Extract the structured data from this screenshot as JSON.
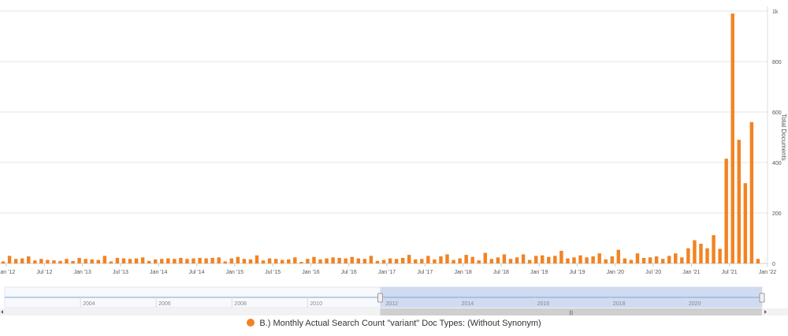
{
  "colors": {
    "series": "#f28322",
    "grid": "#e6e6e6",
    "axis_text": "#555555",
    "navigator_selection": "#c9d6ee",
    "navigator_line": "#7ea5d6"
  },
  "chart_data": {
    "type": "bar",
    "title": "",
    "xlabel": "",
    "ylabel": "Total Documents",
    "y_axis_position": "right",
    "ylim": [
      0,
      1000
    ],
    "y_ticks": [
      {
        "value": 0,
        "label": "0"
      },
      {
        "value": 200,
        "label": "200"
      },
      {
        "value": 400,
        "label": "400"
      },
      {
        "value": 600,
        "label": "600"
      },
      {
        "value": 800,
        "label": "800"
      },
      {
        "value": 1000,
        "label": "1k"
      }
    ],
    "x_range": [
      "2011-12",
      "2022-01"
    ],
    "x_ticks": [
      {
        "date": "2012-01",
        "label": "Jan '12"
      },
      {
        "date": "2012-07",
        "label": "Jul '12"
      },
      {
        "date": "2013-01",
        "label": "Jan '13"
      },
      {
        "date": "2013-07",
        "label": "Jul '13"
      },
      {
        "date": "2014-01",
        "label": "Jan '14"
      },
      {
        "date": "2014-07",
        "label": "Jul '14"
      },
      {
        "date": "2015-01",
        "label": "Jan '15"
      },
      {
        "date": "2015-07",
        "label": "Jul '15"
      },
      {
        "date": "2016-01",
        "label": "Jan '16"
      },
      {
        "date": "2016-07",
        "label": "Jul '16"
      },
      {
        "date": "2017-01",
        "label": "Jan '17"
      },
      {
        "date": "2017-07",
        "label": "Jul '17"
      },
      {
        "date": "2018-01",
        "label": "Jan '18"
      },
      {
        "date": "2018-07",
        "label": "Jul '18"
      },
      {
        "date": "2019-01",
        "label": "Jan '19"
      },
      {
        "date": "2019-07",
        "label": "Jul '19"
      },
      {
        "date": "2020-01",
        "label": "Jan '20"
      },
      {
        "date": "2020-07",
        "label": "Jul '20"
      },
      {
        "date": "2021-01",
        "label": "Jan '21"
      },
      {
        "date": "2021-07",
        "label": "Jul '21"
      },
      {
        "date": "2022-01",
        "label": "Jan '22"
      }
    ],
    "legend_position": "bottom-center",
    "series": [
      {
        "name": "B.) Monthly Actual Search Count \"variant\" Doc Types: (Without Synonym)",
        "values": [
          {
            "x": "2011-12",
            "y": 8
          },
          {
            "x": "2012-01",
            "y": 30
          },
          {
            "x": "2012-02",
            "y": 18
          },
          {
            "x": "2012-03",
            "y": 20
          },
          {
            "x": "2012-04",
            "y": 28
          },
          {
            "x": "2012-05",
            "y": 12
          },
          {
            "x": "2012-06",
            "y": 18
          },
          {
            "x": "2012-07",
            "y": 14
          },
          {
            "x": "2012-08",
            "y": 12
          },
          {
            "x": "2012-09",
            "y": 10
          },
          {
            "x": "2012-10",
            "y": 18
          },
          {
            "x": "2012-11",
            "y": 10
          },
          {
            "x": "2012-12",
            "y": 22
          },
          {
            "x": "2013-01",
            "y": 18
          },
          {
            "x": "2013-02",
            "y": 16
          },
          {
            "x": "2013-03",
            "y": 14
          },
          {
            "x": "2013-04",
            "y": 30
          },
          {
            "x": "2013-05",
            "y": 8
          },
          {
            "x": "2013-06",
            "y": 22
          },
          {
            "x": "2013-07",
            "y": 20
          },
          {
            "x": "2013-08",
            "y": 18
          },
          {
            "x": "2013-09",
            "y": 20
          },
          {
            "x": "2013-10",
            "y": 24
          },
          {
            "x": "2013-11",
            "y": 10
          },
          {
            "x": "2013-12",
            "y": 16
          },
          {
            "x": "2014-01",
            "y": 18
          },
          {
            "x": "2014-02",
            "y": 20
          },
          {
            "x": "2014-03",
            "y": 18
          },
          {
            "x": "2014-04",
            "y": 22
          },
          {
            "x": "2014-05",
            "y": 18
          },
          {
            "x": "2014-06",
            "y": 20
          },
          {
            "x": "2014-07",
            "y": 22
          },
          {
            "x": "2014-08",
            "y": 20
          },
          {
            "x": "2014-09",
            "y": 22
          },
          {
            "x": "2014-10",
            "y": 24
          },
          {
            "x": "2014-11",
            "y": 8
          },
          {
            "x": "2014-12",
            "y": 20
          },
          {
            "x": "2015-01",
            "y": 26
          },
          {
            "x": "2015-02",
            "y": 18
          },
          {
            "x": "2015-03",
            "y": 16
          },
          {
            "x": "2015-04",
            "y": 32
          },
          {
            "x": "2015-05",
            "y": 12
          },
          {
            "x": "2015-06",
            "y": 20
          },
          {
            "x": "2015-07",
            "y": 18
          },
          {
            "x": "2015-08",
            "y": 14
          },
          {
            "x": "2015-09",
            "y": 16
          },
          {
            "x": "2015-10",
            "y": 24
          },
          {
            "x": "2015-11",
            "y": 6
          },
          {
            "x": "2015-12",
            "y": 18
          },
          {
            "x": "2016-01",
            "y": 26
          },
          {
            "x": "2016-02",
            "y": 16
          },
          {
            "x": "2016-03",
            "y": 20
          },
          {
            "x": "2016-04",
            "y": 24
          },
          {
            "x": "2016-05",
            "y": 22
          },
          {
            "x": "2016-06",
            "y": 20
          },
          {
            "x": "2016-07",
            "y": 26
          },
          {
            "x": "2016-08",
            "y": 20
          },
          {
            "x": "2016-09",
            "y": 18
          },
          {
            "x": "2016-10",
            "y": 30
          },
          {
            "x": "2016-11",
            "y": 10
          },
          {
            "x": "2016-12",
            "y": 14
          },
          {
            "x": "2017-01",
            "y": 20
          },
          {
            "x": "2017-02",
            "y": 18
          },
          {
            "x": "2017-03",
            "y": 22
          },
          {
            "x": "2017-04",
            "y": 34
          },
          {
            "x": "2017-05",
            "y": 16
          },
          {
            "x": "2017-06",
            "y": 18
          },
          {
            "x": "2017-07",
            "y": 30
          },
          {
            "x": "2017-08",
            "y": 16
          },
          {
            "x": "2017-09",
            "y": 28
          },
          {
            "x": "2017-10",
            "y": 36
          },
          {
            "x": "2017-11",
            "y": 14
          },
          {
            "x": "2017-12",
            "y": 20
          },
          {
            "x": "2018-01",
            "y": 34
          },
          {
            "x": "2018-02",
            "y": 26
          },
          {
            "x": "2018-03",
            "y": 12
          },
          {
            "x": "2018-04",
            "y": 42
          },
          {
            "x": "2018-05",
            "y": 18
          },
          {
            "x": "2018-06",
            "y": 24
          },
          {
            "x": "2018-07",
            "y": 36
          },
          {
            "x": "2018-08",
            "y": 18
          },
          {
            "x": "2018-09",
            "y": 24
          },
          {
            "x": "2018-10",
            "y": 36
          },
          {
            "x": "2018-11",
            "y": 14
          },
          {
            "x": "2018-12",
            "y": 30
          },
          {
            "x": "2019-01",
            "y": 32
          },
          {
            "x": "2019-02",
            "y": 26
          },
          {
            "x": "2019-03",
            "y": 30
          },
          {
            "x": "2019-04",
            "y": 50
          },
          {
            "x": "2019-05",
            "y": 20
          },
          {
            "x": "2019-06",
            "y": 24
          },
          {
            "x": "2019-07",
            "y": 32
          },
          {
            "x": "2019-08",
            "y": 24
          },
          {
            "x": "2019-09",
            "y": 28
          },
          {
            "x": "2019-10",
            "y": 40
          },
          {
            "x": "2019-11",
            "y": 16
          },
          {
            "x": "2019-12",
            "y": 28
          },
          {
            "x": "2020-01",
            "y": 54
          },
          {
            "x": "2020-02",
            "y": 20
          },
          {
            "x": "2020-03",
            "y": 14
          },
          {
            "x": "2020-04",
            "y": 40
          },
          {
            "x": "2020-05",
            "y": 22
          },
          {
            "x": "2020-06",
            "y": 24
          },
          {
            "x": "2020-07",
            "y": 28
          },
          {
            "x": "2020-08",
            "y": 18
          },
          {
            "x": "2020-09",
            "y": 30
          },
          {
            "x": "2020-10",
            "y": 40
          },
          {
            "x": "2020-11",
            "y": 24
          },
          {
            "x": "2020-12",
            "y": 60
          },
          {
            "x": "2021-01",
            "y": 92
          },
          {
            "x": "2021-02",
            "y": 78
          },
          {
            "x": "2021-03",
            "y": 60
          },
          {
            "x": "2021-04",
            "y": 112
          },
          {
            "x": "2021-05",
            "y": 58
          },
          {
            "x": "2021-06",
            "y": 415
          },
          {
            "x": "2021-07",
            "y": 990
          },
          {
            "x": "2021-08",
            "y": 490
          },
          {
            "x": "2021-09",
            "y": 318
          },
          {
            "x": "2021-10",
            "y": 560
          },
          {
            "x": "2021-11",
            "y": 18
          }
        ]
      }
    ]
  },
  "navigator": {
    "labels": [
      "2004",
      "2006",
      "2008",
      "2010",
      "2012",
      "2014",
      "2016",
      "2018",
      "2020"
    ],
    "range_start_year": 2002,
    "range_end_year": 2022,
    "selection_start": "2011-12",
    "selection_end": "2022-01",
    "scroll_grip": "|||"
  },
  "legend": {
    "label": "B.) Monthly Actual Search Count \"variant\" Doc Types: (Without Synonym)"
  }
}
